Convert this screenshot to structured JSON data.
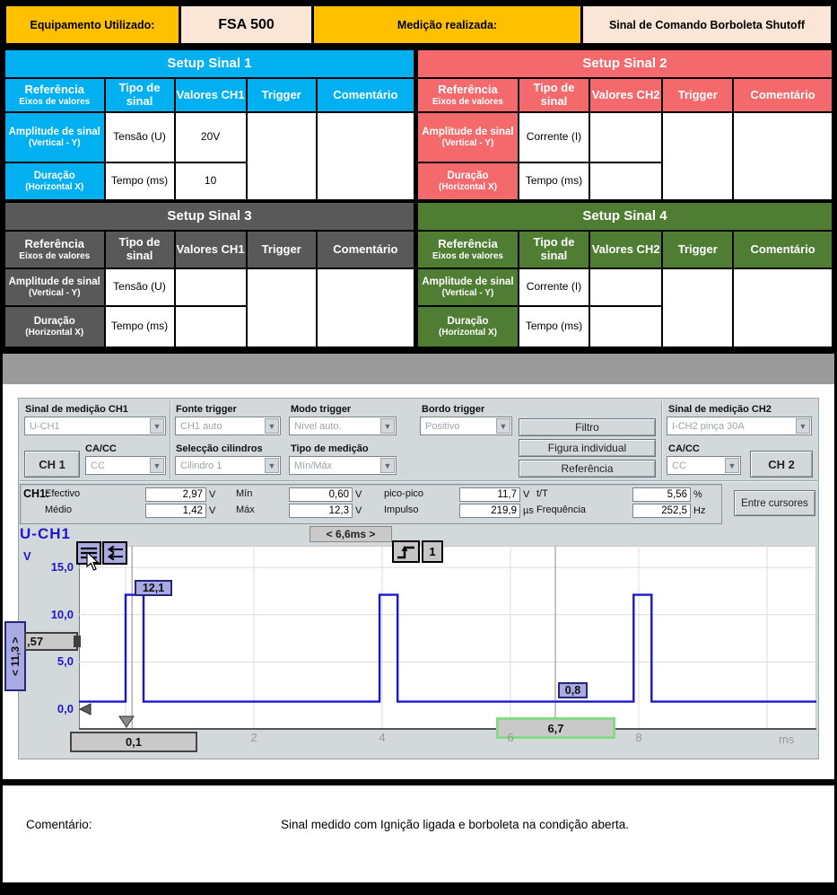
{
  "header": {
    "equipment_label": "Equipamento Utilizado:",
    "equipment_value": "FSA 500",
    "measurement_label": "Medição realizada:",
    "measurement_value": "Sinal de Comando Borboleta Shutoff"
  },
  "setup_tables": [
    {
      "title": "Setup Sinal 1",
      "theme_color": "#00B0F0",
      "header": {
        "col1_main": "Referência",
        "col1_sub": "Eixos de valores",
        "col2_line1": "Tipo de",
        "col2_line2": "sinal",
        "col3": "Valores CH1",
        "col4": "Trigger",
        "col5": "Comentário"
      },
      "rows": [
        {
          "ref_main": "Amplitude de sinal",
          "ref_sub": "(Vertical - Y)",
          "tipo": "Tensão (U)",
          "valor": "20V"
        },
        {
          "ref_main": "Duração",
          "ref_sub": "(Horizontal X)",
          "tipo": "Tempo (ms)",
          "valor": "10"
        }
      ],
      "trigger_value": "",
      "comment_value": ""
    },
    {
      "title": "Setup Sinal 2",
      "theme_color": "#F4696C",
      "header": {
        "col1_main": "Referência",
        "col1_sub": "Eixos de valores",
        "col2_line1": "Tipo de",
        "col2_line2": "sinal",
        "col3": "Valores CH2",
        "col4": "Trigger",
        "col5": "Comentário"
      },
      "rows": [
        {
          "ref_main": "Amplitude de sinal",
          "ref_sub": "(Vertical - Y)",
          "tipo": "Corrente (I)",
          "valor": ""
        },
        {
          "ref_main": "Duração",
          "ref_sub": "(Horizontal X)",
          "tipo": "Tempo (ms)",
          "valor": ""
        }
      ],
      "trigger_value": "",
      "comment_value": ""
    },
    {
      "title": "Setup Sinal 3",
      "theme_color": "#595959",
      "header": {
        "col1_main": "Referência",
        "col1_sub": "Eixos de valores",
        "col2_line1": "Tipo de",
        "col2_line2": "sinal",
        "col3": "Valores CH1",
        "col4": "Trigger",
        "col5": "Comentário"
      },
      "rows": [
        {
          "ref_main": "Amplitude de sinal",
          "ref_sub": "(Vertical - Y)",
          "tipo": "Tensão (U)",
          "valor": ""
        },
        {
          "ref_main": "Duração",
          "ref_sub": "(Horizontal X)",
          "tipo": "Tempo (ms)",
          "valor": ""
        }
      ],
      "trigger_value": "",
      "comment_value": ""
    },
    {
      "title": "Setup Sinal 4",
      "theme_color": "#4F7D33",
      "header": {
        "col1_main": "Referência",
        "col1_sub": "Eixos de valores",
        "col2_line1": "Tipo de",
        "col2_line2": "sinal",
        "col3": "Valores CH2",
        "col4": "Trigger",
        "col5": "Comentário"
      },
      "rows": [
        {
          "ref_main": "Amplitude de sinal",
          "ref_sub": "(Vertical - Y)",
          "tipo": "Corrente (I)",
          "valor": ""
        },
        {
          "ref_main": "Duração",
          "ref_sub": "(Horizontal X)",
          "tipo": "Tempo (ms)",
          "valor": ""
        }
      ],
      "trigger_value": "",
      "comment_value": ""
    }
  ],
  "scope": {
    "controls": {
      "ch1_signal_label": "Sinal de medição CH1",
      "ch1_signal_value": "U-CH1",
      "fonte_trigger_label": "Fonte trigger",
      "fonte_trigger_value": "CH1 auto",
      "modo_trigger_label": "Modo trigger",
      "modo_trigger_value": "Nível auto.",
      "bordo_trigger_label": "Bordo trigger",
      "bordo_trigger_value": "Positivo",
      "ch2_signal_label": "Sinal de medição CH2",
      "ch2_signal_value": "I-CH2 pinça 30A",
      "cacc_label_left": "CA/CC",
      "ch1_button": "CH 1",
      "cacc_value_left": "CC",
      "seleccao_label": "Selecção cilindros",
      "seleccao_value": "Cilindro 1",
      "tipo_medicao_label": "Tipo de medição",
      "tipo_medicao_value": "Mín/Máx",
      "cacc_label_right": "CA/CC",
      "cacc_value_right": "CC",
      "ch2_button": "CH 2",
      "filtro_button": "Filtro",
      "figura_button": "Figura individual",
      "referencia_button": "Referência"
    },
    "measurements": {
      "channel_label": "CH1:",
      "fields": [
        {
          "label": "Efectivo",
          "value": "2,97",
          "unit": "V",
          "row": 0,
          "col": 0
        },
        {
          "label": "Médio",
          "value": "1,42",
          "unit": "V",
          "row": 1,
          "col": 0
        },
        {
          "label": "Mín",
          "value": "0,60",
          "unit": "V",
          "row": 0,
          "col": 1
        },
        {
          "label": "Máx",
          "value": "12,3",
          "unit": "V",
          "row": 1,
          "col": 1
        },
        {
          "label": "pico-pico",
          "value": "11,7",
          "unit": "V",
          "row": 0,
          "col": 2
        },
        {
          "label": "Impulso",
          "value": "219,9",
          "unit": "µs",
          "row": 1,
          "col": 2
        },
        {
          "label": "t/T",
          "value": "5,56",
          "unit": "%",
          "row": 0,
          "col": 3
        },
        {
          "label": "Frequência",
          "value": "252,5",
          "unit": "Hz",
          "row": 1,
          "col": 3
        }
      ],
      "entre_cursores_button": "Entre cursores"
    },
    "chart_labels": {
      "channel": "U-CH1",
      "delta_time": "< 6,6ms >",
      "delta_v": "< 11,3 >",
      "cursor_handle": ",57",
      "cursor1_v": "12,1",
      "cursor2_v": "0,8",
      "cursor1_t": "0,1",
      "cursor2_t": "6,7",
      "trigger_num": "1",
      "unit_x": "ms",
      "unit_y": "V"
    }
  },
  "chart_data": {
    "type": "line",
    "title": "U-CH1",
    "xlabel": "ms",
    "ylabel": "V",
    "xlim": [
      -0.73,
      10.77
    ],
    "ylim": [
      -2.1,
      17.3
    ],
    "x_ticks": [
      2,
      4,
      6,
      8
    ],
    "x_tick_labels": [
      "2",
      "4",
      "6",
      "8"
    ],
    "x_gridlines": [
      0,
      2,
      4,
      6,
      8,
      10
    ],
    "y_ticks": [
      0,
      5,
      10,
      15
    ],
    "y_tick_labels": [
      "0,0",
      "5,0",
      "10,0",
      "15,0"
    ],
    "y_gridlines": [
      5,
      10,
      15
    ],
    "grid": true,
    "series": [
      {
        "name": "U-CH1",
        "waveform": "square-pulse",
        "baseline_v": 0.8,
        "high_v": 12.1,
        "pulse_rise_times_ms": [
          0,
          3.96,
          7.92
        ],
        "pulse_width_ms": 0.28,
        "period_ms": 3.96,
        "color": "#1A16D0"
      }
    ],
    "cursors": {
      "t1_ms": 0.1,
      "t2_ms": 6.7,
      "delta_t_label": "< 6,6ms >",
      "v_at_t1": 12.1,
      "v_at_t2": 0.8,
      "delta_v_label": "< 11,3 >"
    },
    "trigger": {
      "channel": 1,
      "edge": "positive",
      "level_v": 0,
      "position_ms": 0
    }
  },
  "comment": {
    "label": "Comentário:",
    "text": "Sinal medido com Ignição ligada e borboleta na condição aberta."
  }
}
